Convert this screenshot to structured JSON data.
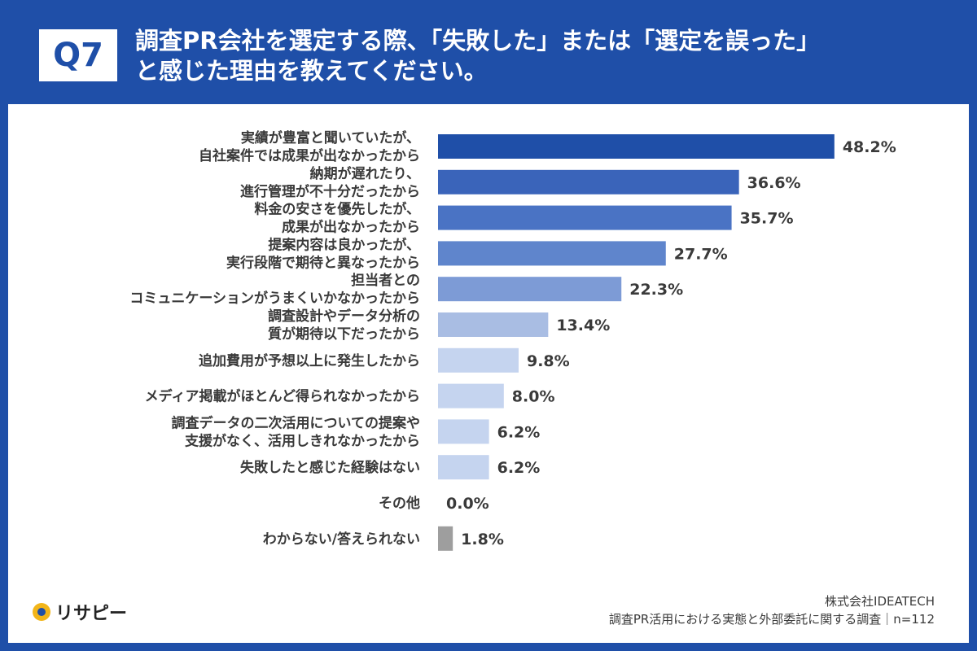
{
  "header": {
    "q_label": "Q7",
    "title_line1": "調査PR会社を選定する際、「失敗した」または「選定を誤った」",
    "title_line2": "と感じた理由を教えてください。"
  },
  "brand": {
    "name": "リサピー"
  },
  "source": {
    "company": "株式会社IDEATECH",
    "survey": "調査PR活用における実態と外部委託に関する調査｜n=112"
  },
  "colors": {
    "header_bg": "#1f4fa8"
  },
  "chart_data": {
    "type": "bar",
    "orientation": "horizontal",
    "unit": "%",
    "categories": [
      [
        "実績が豊富と聞いていたが、",
        "自社案件では成果が出なかったから"
      ],
      [
        "納期が遅れたり、",
        "進行管理が不十分だったから"
      ],
      [
        "料金の安さを優先したが、",
        "成果が出なかったから"
      ],
      [
        "提案内容は良かったが、",
        "実行段階で期待と異なったから"
      ],
      [
        "担当者との",
        "コミュニケーションがうまくいかなかったから"
      ],
      [
        "調査設計やデータ分析の",
        "質が期待以下だったから"
      ],
      [
        "追加費用が予想以上に発生したから"
      ],
      [
        "メディア掲載がほとんど得られなかったから"
      ],
      [
        "調査データの二次活用についての提案や",
        "支援がなく、活用しきれなかったから"
      ],
      [
        "失敗したと感じた経験はない"
      ],
      [
        "その他"
      ],
      [
        "わからない/答えられない"
      ]
    ],
    "values": [
      48.2,
      36.6,
      35.7,
      27.7,
      22.3,
      13.4,
      9.8,
      8.0,
      6.2,
      6.2,
      0.0,
      1.8
    ],
    "value_labels": [
      "48.2%",
      "36.6%",
      "35.7%",
      "27.7%",
      "22.3%",
      "13.4%",
      "9.8%",
      "8.0%",
      "6.2%",
      "6.2%",
      "0.0%",
      "1.8%"
    ],
    "bar_colors": [
      "#1f4fa8",
      "#3a64ba",
      "#4a73c4",
      "#5f85cc",
      "#7d9bd6",
      "#a9bde3",
      "#c5d4ef",
      "#c5d4ef",
      "#c5d4ef",
      "#c5d4ef",
      "#c5d4ef",
      "#9e9e9e"
    ]
  }
}
